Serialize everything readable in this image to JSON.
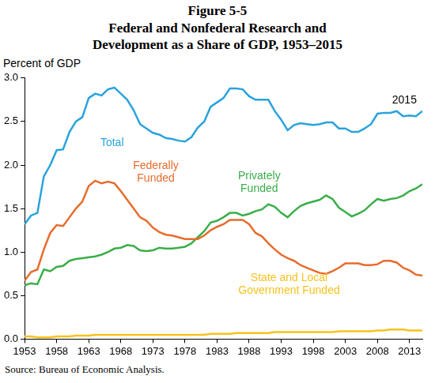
{
  "chart_data": {
    "type": "line",
    "title": "Figure 5-5",
    "subtitle": "Federal and Nonfederal Research and Development as a Share of GDP, 1953–2015",
    "y_label": "Percent of GDP",
    "source": "Source: Bureau of Economic Analysis.",
    "x": [
      1953,
      1954,
      1955,
      1956,
      1957,
      1958,
      1959,
      1960,
      1961,
      1962,
      1963,
      1964,
      1965,
      1966,
      1967,
      1968,
      1969,
      1970,
      1971,
      1972,
      1973,
      1974,
      1975,
      1976,
      1977,
      1978,
      1979,
      1980,
      1981,
      1982,
      1983,
      1984,
      1985,
      1986,
      1987,
      1988,
      1989,
      1990,
      1991,
      1992,
      1993,
      1994,
      1995,
      1996,
      1997,
      1998,
      1999,
      2000,
      2001,
      2002,
      2003,
      2004,
      2005,
      2006,
      2007,
      2008,
      2009,
      2010,
      2011,
      2012,
      2013,
      2014,
      2015
    ],
    "xlim": [
      1953,
      2015
    ],
    "xticks": [
      1953,
      1958,
      1963,
      1968,
      1973,
      1978,
      1983,
      1988,
      1993,
      1998,
      2003,
      2008,
      2013
    ],
    "ylim": [
      0,
      3
    ],
    "yticks": [
      {
        "value": 0,
        "label": "0.0"
      },
      {
        "value": 0.5,
        "label": "0.5"
      },
      {
        "value": 1,
        "label": "1.0"
      },
      {
        "value": 1.5,
        "label": "1.5"
      },
      {
        "value": 2,
        "label": "2.0"
      },
      {
        "value": 2.5,
        "label": "2.5"
      },
      {
        "value": 3,
        "label": "3.0"
      }
    ],
    "grid": false,
    "series": [
      {
        "name": "Total",
        "color": "#29a3dc",
        "values": [
          1.32,
          1.42,
          1.45,
          1.87,
          2.0,
          2.17,
          2.18,
          2.38,
          2.5,
          2.55,
          2.77,
          2.82,
          2.8,
          2.87,
          2.89,
          2.82,
          2.75,
          2.63,
          2.47,
          2.42,
          2.37,
          2.35,
          2.31,
          2.3,
          2.28,
          2.27,
          2.32,
          2.43,
          2.5,
          2.67,
          2.72,
          2.77,
          2.88,
          2.88,
          2.87,
          2.79,
          2.75,
          2.75,
          2.75,
          2.62,
          2.52,
          2.4,
          2.46,
          2.48,
          2.47,
          2.46,
          2.47,
          2.49,
          2.49,
          2.42,
          2.42,
          2.38,
          2.38,
          2.42,
          2.47,
          2.59,
          2.6,
          2.6,
          2.62,
          2.56,
          2.57,
          2.56,
          2.62
        ]
      },
      {
        "name": "Federally Funded",
        "color": "#e66c2c",
        "values": [
          0.67,
          0.77,
          0.8,
          1.03,
          1.22,
          1.31,
          1.3,
          1.4,
          1.5,
          1.58,
          1.76,
          1.82,
          1.79,
          1.81,
          1.79,
          1.7,
          1.6,
          1.5,
          1.4,
          1.36,
          1.28,
          1.23,
          1.2,
          1.19,
          1.17,
          1.15,
          1.15,
          1.15,
          1.19,
          1.25,
          1.29,
          1.32,
          1.37,
          1.37,
          1.37,
          1.32,
          1.22,
          1.18,
          1.1,
          1.03,
          0.97,
          0.93,
          0.9,
          0.85,
          0.82,
          0.79,
          0.76,
          0.75,
          0.78,
          0.82,
          0.87,
          0.87,
          0.87,
          0.85,
          0.85,
          0.86,
          0.9,
          0.9,
          0.88,
          0.82,
          0.79,
          0.74,
          0.73
        ]
      },
      {
        "name": "Privately Funded",
        "color": "#3aae49",
        "values": [
          0.62,
          0.64,
          0.63,
          0.8,
          0.78,
          0.83,
          0.84,
          0.9,
          0.92,
          0.93,
          0.94,
          0.95,
          0.97,
          1.0,
          1.04,
          1.05,
          1.08,
          1.07,
          1.02,
          1.01,
          1.02,
          1.05,
          1.04,
          1.04,
          1.05,
          1.06,
          1.1,
          1.17,
          1.24,
          1.34,
          1.36,
          1.4,
          1.45,
          1.45,
          1.42,
          1.44,
          1.47,
          1.49,
          1.55,
          1.52,
          1.45,
          1.4,
          1.47,
          1.53,
          1.56,
          1.58,
          1.6,
          1.65,
          1.61,
          1.51,
          1.46,
          1.41,
          1.44,
          1.48,
          1.55,
          1.61,
          1.59,
          1.61,
          1.62,
          1.65,
          1.7,
          1.73,
          1.78
        ]
      },
      {
        "name": "State and Local Government Funded",
        "color": "#f7c21b",
        "values": [
          0.03,
          0.03,
          0.02,
          0.02,
          0.02,
          0.03,
          0.03,
          0.03,
          0.04,
          0.04,
          0.04,
          0.05,
          0.05,
          0.05,
          0.05,
          0.05,
          0.05,
          0.05,
          0.05,
          0.05,
          0.05,
          0.05,
          0.05,
          0.05,
          0.05,
          0.05,
          0.05,
          0.05,
          0.05,
          0.06,
          0.06,
          0.06,
          0.06,
          0.07,
          0.07,
          0.07,
          0.07,
          0.07,
          0.07,
          0.08,
          0.08,
          0.08,
          0.08,
          0.08,
          0.08,
          0.08,
          0.08,
          0.08,
          0.08,
          0.09,
          0.09,
          0.09,
          0.09,
          0.09,
          0.09,
          0.1,
          0.1,
          0.11,
          0.11,
          0.11,
          0.1,
          0.1,
          0.1
        ]
      }
    ],
    "annotations": [
      {
        "text": "2015"
      }
    ]
  }
}
